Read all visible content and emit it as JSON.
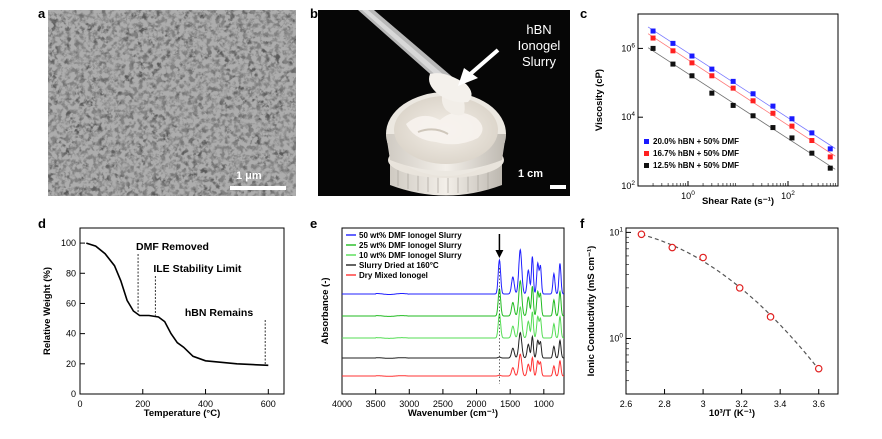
{
  "panels": {
    "a": {
      "label": "a",
      "scale_bar": "1 μm"
    },
    "b": {
      "label": "b",
      "annotation": [
        "hBN",
        "Ionogel",
        "Slurry"
      ],
      "scale_bar": "1 cm"
    },
    "c": {
      "label": "c"
    },
    "d": {
      "label": "d"
    },
    "e": {
      "label": "e"
    },
    "f": {
      "label": "f"
    }
  },
  "chart_data": [
    {
      "id": "c",
      "type": "scatter",
      "xlabel": "Shear Rate (s⁻¹)",
      "ylabel": "Viscosity (cP)",
      "xscale": "log",
      "yscale": "log",
      "xlim": [
        0.1,
        1000
      ],
      "ylim": [
        100,
        10000000
      ],
      "xticks": [
        {
          "v": 1,
          "base": "10",
          "exp": "0"
        },
        {
          "v": 100,
          "base": "10",
          "exp": "2"
        }
      ],
      "yticks": [
        {
          "v": 100,
          "base": "10",
          "exp": "2"
        },
        {
          "v": 10000,
          "base": "10",
          "exp": "4"
        },
        {
          "v": 1000000,
          "base": "10",
          "exp": "6"
        }
      ],
      "x": [
        0.2,
        0.5,
        1.2,
        3,
        8,
        20,
        50,
        120,
        300,
        700
      ],
      "series": [
        {
          "name": "20.0% hBN + 50% DMF",
          "color": "#1a1aff",
          "values": [
            3200000,
            1400000,
            600000,
            250000,
            110000,
            48000,
            21000,
            9000,
            3500,
            1200
          ]
        },
        {
          "name": "16.7% hBN + 50% DMF",
          "color": "#ff2020",
          "values": [
            2000000,
            850000,
            380000,
            160000,
            70000,
            30000,
            13000,
            5500,
            2100,
            700
          ]
        },
        {
          "name": "12.5% hBN + 50% DMF",
          "color": "#111111",
          "values": [
            1000000,
            350000,
            160000,
            50000,
            22000,
            11000,
            5000,
            2500,
            900,
            330
          ]
        }
      ],
      "legend": "bottom-left"
    },
    {
      "id": "d",
      "type": "line",
      "xlabel": "Temperature (°C)",
      "ylabel": "Relative Weight (%)",
      "xlim": [
        0,
        650
      ],
      "ylim": [
        0,
        110
      ],
      "xticks": [
        0,
        200,
        400,
        600
      ],
      "yticks": [
        0,
        20,
        40,
        60,
        80,
        100
      ],
      "x": [
        20,
        50,
        80,
        110,
        130,
        150,
        170,
        190,
        220,
        250,
        270,
        290,
        310,
        330,
        360,
        400,
        450,
        500,
        550,
        600
      ],
      "y": [
        100,
        98,
        93,
        85,
        75,
        62,
        55,
        52,
        52,
        51,
        48,
        40,
        34,
        31,
        25,
        22,
        21,
        20,
        19.5,
        19
      ],
      "annotations": [
        {
          "text": "DMF Removed",
          "x": 185
        },
        {
          "text": "ILE Stability Limit",
          "x": 240
        },
        {
          "text": "hBN Remains",
          "x": 590
        }
      ]
    },
    {
      "id": "e",
      "type": "line",
      "xlabel": "Wavenumber (cm⁻¹)",
      "ylabel": "Absorbance (-)",
      "xlim": [
        4000,
        700
      ],
      "xticks": [
        4000,
        3500,
        3000,
        2500,
        2000,
        1500,
        1000
      ],
      "series": [
        {
          "name": "50 wt% DMF Ionogel Slurry",
          "color": "#2020ff"
        },
        {
          "name": "25 wt% DMF Ionogel Slurry",
          "color": "#22bb22"
        },
        {
          "name": "10 wt% DMF Ionogel Slurry",
          "color": "#55dd55"
        },
        {
          "name": "Slurry Dried at 160°C",
          "color": "#222222"
        },
        {
          "name": "Dry Mixed Ionogel",
          "color": "#ff3333"
        }
      ],
      "peaks": [
        {
          "w": 1660,
          "h": 1.0,
          "s": 18
        },
        {
          "w": 1460,
          "h": 0.5,
          "s": 20
        },
        {
          "w": 1350,
          "h": 1.3,
          "s": 22
        },
        {
          "w": 1230,
          "h": 0.7,
          "s": 18
        },
        {
          "w": 1170,
          "h": 1.1,
          "s": 14
        },
        {
          "w": 1090,
          "h": 0.9,
          "s": 16
        },
        {
          "w": 1050,
          "h": 0.8,
          "s": 14
        },
        {
          "w": 850,
          "h": 0.6,
          "s": 15
        },
        {
          "w": 760,
          "h": 0.9,
          "s": 15
        }
      ],
      "series_scale": [
        1.0,
        0.9,
        0.85,
        0.75,
        0.7
      ],
      "arrow_at": 1660
    },
    {
      "id": "f",
      "type": "scatter",
      "xlabel": "10³/T (K⁻¹)",
      "ylabel": "Ionic Conductivity (mS cm⁻¹)",
      "yscale": "log",
      "xlim": [
        2.6,
        3.7
      ],
      "ylim": [
        0.3,
        11
      ],
      "xticks": [
        2.6,
        2.8,
        3,
        3.2,
        3.4,
        3.6
      ],
      "yticks": [
        {
          "v": 1,
          "base": "10",
          "exp": "0"
        },
        {
          "v": 10,
          "base": "10",
          "exp": "1"
        }
      ],
      "x": [
        2.68,
        2.84,
        3.0,
        3.19,
        3.35,
        3.6
      ],
      "y": [
        9.6,
        7.2,
        5.8,
        3.0,
        1.6,
        0.52
      ]
    }
  ]
}
